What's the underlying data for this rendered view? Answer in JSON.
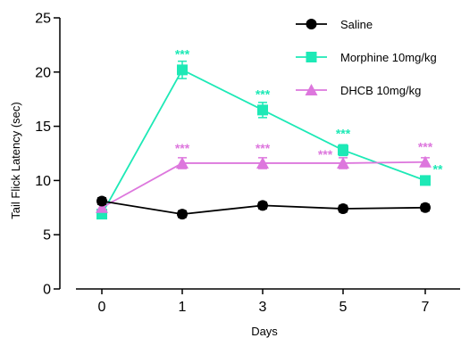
{
  "chart_data": {
    "type": "line",
    "title": "",
    "xlabel": "Days",
    "ylabel": "Tail Flick Latency (sec)",
    "ylim": [
      0,
      25
    ],
    "yticks": [
      0,
      5,
      10,
      15,
      20,
      25
    ],
    "x": [
      0,
      1,
      3,
      5,
      7
    ],
    "x_tick_labels": [
      "0",
      "1",
      "3",
      "5",
      "7"
    ],
    "grid": false,
    "legend_position": "top-right",
    "series": [
      {
        "name": "Saline",
        "color": "#000000",
        "marker": "circle",
        "values": [
          8.1,
          6.9,
          7.7,
          7.4,
          7.5
        ],
        "errors": [
          0.3,
          0.3,
          0.3,
          0.3,
          0.3
        ],
        "significance": [
          "",
          "",
          "",
          "",
          ""
        ]
      },
      {
        "name": "Morphine 10mg/kg",
        "color": "#1de9b6",
        "marker": "square",
        "values": [
          6.9,
          20.2,
          16.5,
          12.8,
          10.0
        ],
        "errors": [
          0.3,
          0.8,
          0.7,
          0.5,
          0.3
        ],
        "significance": [
          "",
          "***",
          "***",
          "***",
          "**"
        ]
      },
      {
        "name": "DHCB 10mg/kg",
        "color": "#dd77dd",
        "marker": "triangle",
        "values": [
          7.5,
          11.6,
          11.6,
          11.6,
          11.7
        ],
        "errors": [
          0.3,
          0.5,
          0.5,
          0.5,
          0.4
        ],
        "significance": [
          "",
          "***",
          "***",
          "***",
          "***"
        ]
      }
    ]
  }
}
